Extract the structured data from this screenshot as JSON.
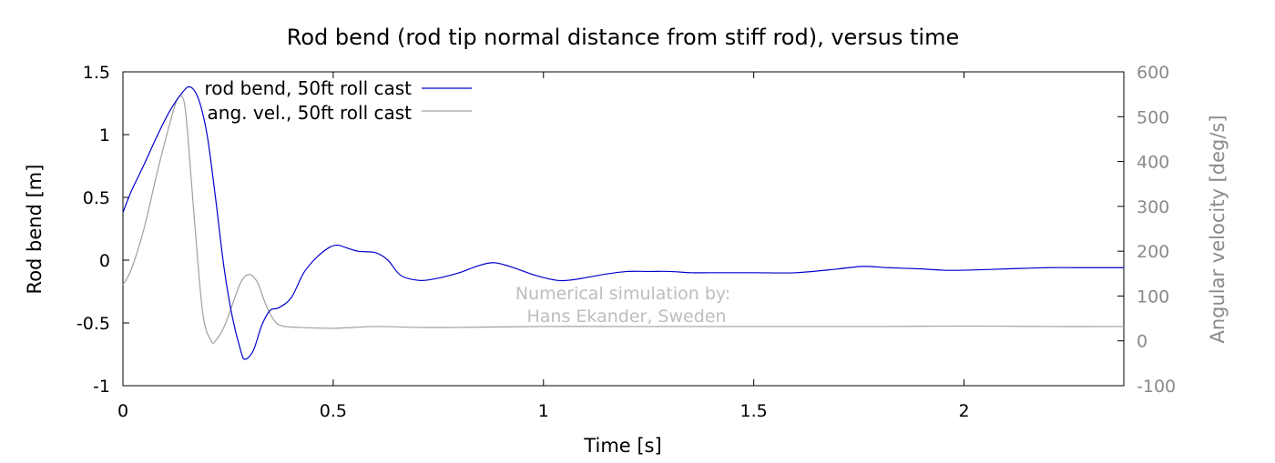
{
  "chart_data": {
    "type": "line",
    "title": "Rod bend (rod tip normal distance from stiff rod), versus time",
    "xlabel": "Time [s]",
    "ylabel": "Rod bend [m]",
    "y2label": "Angular velocity [deg/s]",
    "xlim": [
      0,
      2.38
    ],
    "ylim": [
      -1,
      1.5
    ],
    "y2lim": [
      -100,
      600
    ],
    "xticks": [
      0,
      0.5,
      1,
      1.5,
      2
    ],
    "xtick_labels": [
      "0",
      "0.5",
      "1",
      "1.5",
      "2"
    ],
    "yticks": [
      -1,
      -0.5,
      0,
      0.5,
      1,
      1.5
    ],
    "ytick_labels": [
      "-1",
      "-0.5",
      "0",
      "0.5",
      "1",
      "1.5"
    ],
    "y2ticks": [
      -100,
      0,
      100,
      200,
      300,
      400,
      500,
      600
    ],
    "y2tick_labels": [
      "-100",
      "0",
      "100",
      "200",
      "300",
      "400",
      "500",
      "600"
    ],
    "grid": false,
    "legend": "top-left",
    "annotation": [
      "Numerical simulation by:",
      "Hans Ekander, Sweden"
    ],
    "series": [
      {
        "name": "rod bend, 50ft roll cast",
        "axis": "left",
        "color": "#0000cc",
        "x": [
          0,
          0.02,
          0.05,
          0.08,
          0.11,
          0.14,
          0.16,
          0.18,
          0.2,
          0.22,
          0.24,
          0.26,
          0.28,
          0.29,
          0.31,
          0.33,
          0.35,
          0.37,
          0.4,
          0.43,
          0.46,
          0.49,
          0.51,
          0.53,
          0.56,
          0.6,
          0.63,
          0.66,
          0.7,
          0.74,
          0.8,
          0.84,
          0.88,
          0.92,
          0.98,
          1.03,
          1.06,
          1.1,
          1.15,
          1.2,
          1.25,
          1.3,
          1.35,
          1.4,
          1.5,
          1.6,
          1.7,
          1.76,
          1.82,
          1.9,
          1.95,
          2.0,
          2.1,
          2.2,
          2.3,
          2.38
        ],
        "y": [
          0.38,
          0.55,
          0.76,
          0.98,
          1.18,
          1.33,
          1.38,
          1.28,
          1.0,
          0.5,
          -0.05,
          -0.45,
          -0.72,
          -0.79,
          -0.72,
          -0.52,
          -0.4,
          -0.38,
          -0.3,
          -0.1,
          0.02,
          0.1,
          0.12,
          0.1,
          0.07,
          0.06,
          0.0,
          -0.12,
          -0.16,
          -0.15,
          -0.1,
          -0.05,
          -0.02,
          -0.05,
          -0.12,
          -0.16,
          -0.16,
          -0.14,
          -0.11,
          -0.09,
          -0.09,
          -0.09,
          -0.1,
          -0.1,
          -0.1,
          -0.1,
          -0.07,
          -0.05,
          -0.06,
          -0.07,
          -0.08,
          -0.08,
          -0.07,
          -0.06,
          -0.06,
          -0.06
        ]
      },
      {
        "name": "ang. vel., 50ft roll cast",
        "axis": "right",
        "color": "#a0a0a0",
        "x": [
          0,
          0.02,
          0.05,
          0.08,
          0.11,
          0.13,
          0.145,
          0.155,
          0.17,
          0.19,
          0.21,
          0.22,
          0.24,
          0.26,
          0.28,
          0.3,
          0.32,
          0.34,
          0.36,
          0.38,
          0.42,
          0.5,
          0.6,
          0.7,
          0.8,
          1.0,
          1.2,
          1.5,
          1.8,
          2.0,
          2.2,
          2.38
        ],
        "y": [
          125,
          160,
          250,
          370,
          480,
          540,
          535,
          450,
          270,
          60,
          0,
          0,
          30,
          80,
          130,
          148,
          130,
          80,
          45,
          33,
          30,
          28,
          32,
          30,
          30,
          32,
          32,
          32,
          32,
          33,
          32,
          32
        ]
      }
    ]
  }
}
